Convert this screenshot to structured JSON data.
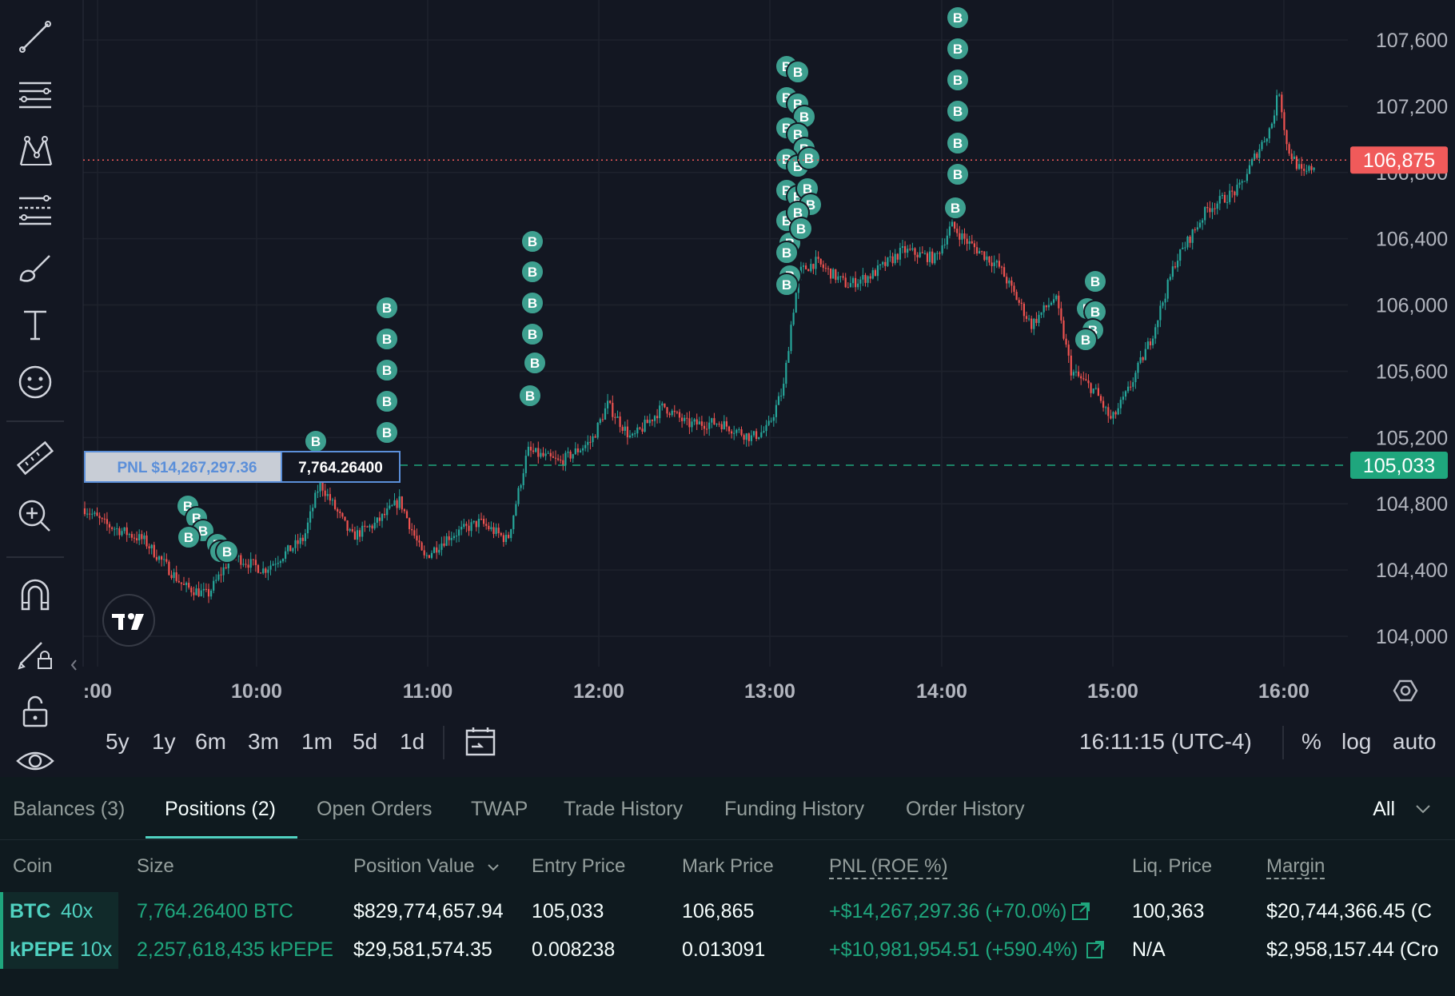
{
  "chart": {
    "price_axis": {
      "labels": [
        "107,600",
        "107,200",
        "106,800",
        "106,400",
        "106,000",
        "105,600",
        "105,200",
        "104,800",
        "104,400",
        "104,000"
      ],
      "values": [
        107600,
        107200,
        106800,
        106400,
        106000,
        105600,
        105200,
        104800,
        104400,
        104000
      ],
      "current_price": "106,875",
      "current_price_value": 106875,
      "current_price_color": "#f05a5a",
      "entry_price": "105,033",
      "entry_price_value": 105033,
      "entry_color": "#1fa67d"
    },
    "time_axis": {
      "labels": [
        ":00",
        "10:00",
        "11:00",
        "12:00",
        "13:00",
        "14:00",
        "15:00",
        "16:00"
      ]
    },
    "pnl_label": "PNL $14,267,297.36",
    "size_label": "7,764.26400",
    "buy_marker": "B",
    "colors": {
      "up": "#26a69a",
      "down": "#ef5350",
      "bg": "#131722",
      "grid": "#1e222d",
      "marker": "#3d9f8f"
    }
  },
  "toolbar": {
    "icons": [
      "trend-line-icon",
      "horizontal-lines-icon",
      "pattern-icon",
      "fib-icon",
      "brush-icon",
      "text-icon",
      "emoji-icon",
      "ruler-icon",
      "zoom-in-icon",
      "magnet-icon",
      "lock-drawing-icon",
      "lock-icon",
      "eye-icon"
    ]
  },
  "range_bar": {
    "ranges": [
      "5y",
      "1y",
      "6m",
      "3m",
      "1m",
      "5d",
      "1d"
    ],
    "clock": "16:11:15 (UTC-4)",
    "percent": "%",
    "log": "log",
    "auto": "auto"
  },
  "tabs": {
    "items": [
      "Balances (3)",
      "Positions (2)",
      "Open Orders",
      "TWAP",
      "Trade History",
      "Funding History",
      "Order History"
    ],
    "active": 1,
    "filter": "All"
  },
  "positions": {
    "headers": {
      "coin": "Coin",
      "size": "Size",
      "position_value": "Position Value",
      "entry_price": "Entry Price",
      "mark_price": "Mark Price",
      "pnl": "PNL (ROE %)",
      "liq_price": "Liq. Price",
      "margin": "Margin"
    },
    "rows": [
      {
        "coin": "BTC",
        "leverage": "40x",
        "size": "7,764.26400 BTC",
        "position_value": "$829,774,657.94",
        "entry_price": "105,033",
        "mark_price": "106,865",
        "pnl": "+$14,267,297.36 (+70.0%)",
        "liq_price": "100,363",
        "margin": "$20,744,366.45 (C"
      },
      {
        "coin": "kPEPE",
        "leverage": "10x",
        "size": "2,257,618,435 kPEPE",
        "position_value": "$29,581,574.35",
        "entry_price": "0.008238",
        "mark_price": "0.013091",
        "pnl": "+$10,981,954.51 (+590.4%)",
        "liq_price": "N/A",
        "margin": "$2,958,157.44 (Cro"
      }
    ]
  }
}
